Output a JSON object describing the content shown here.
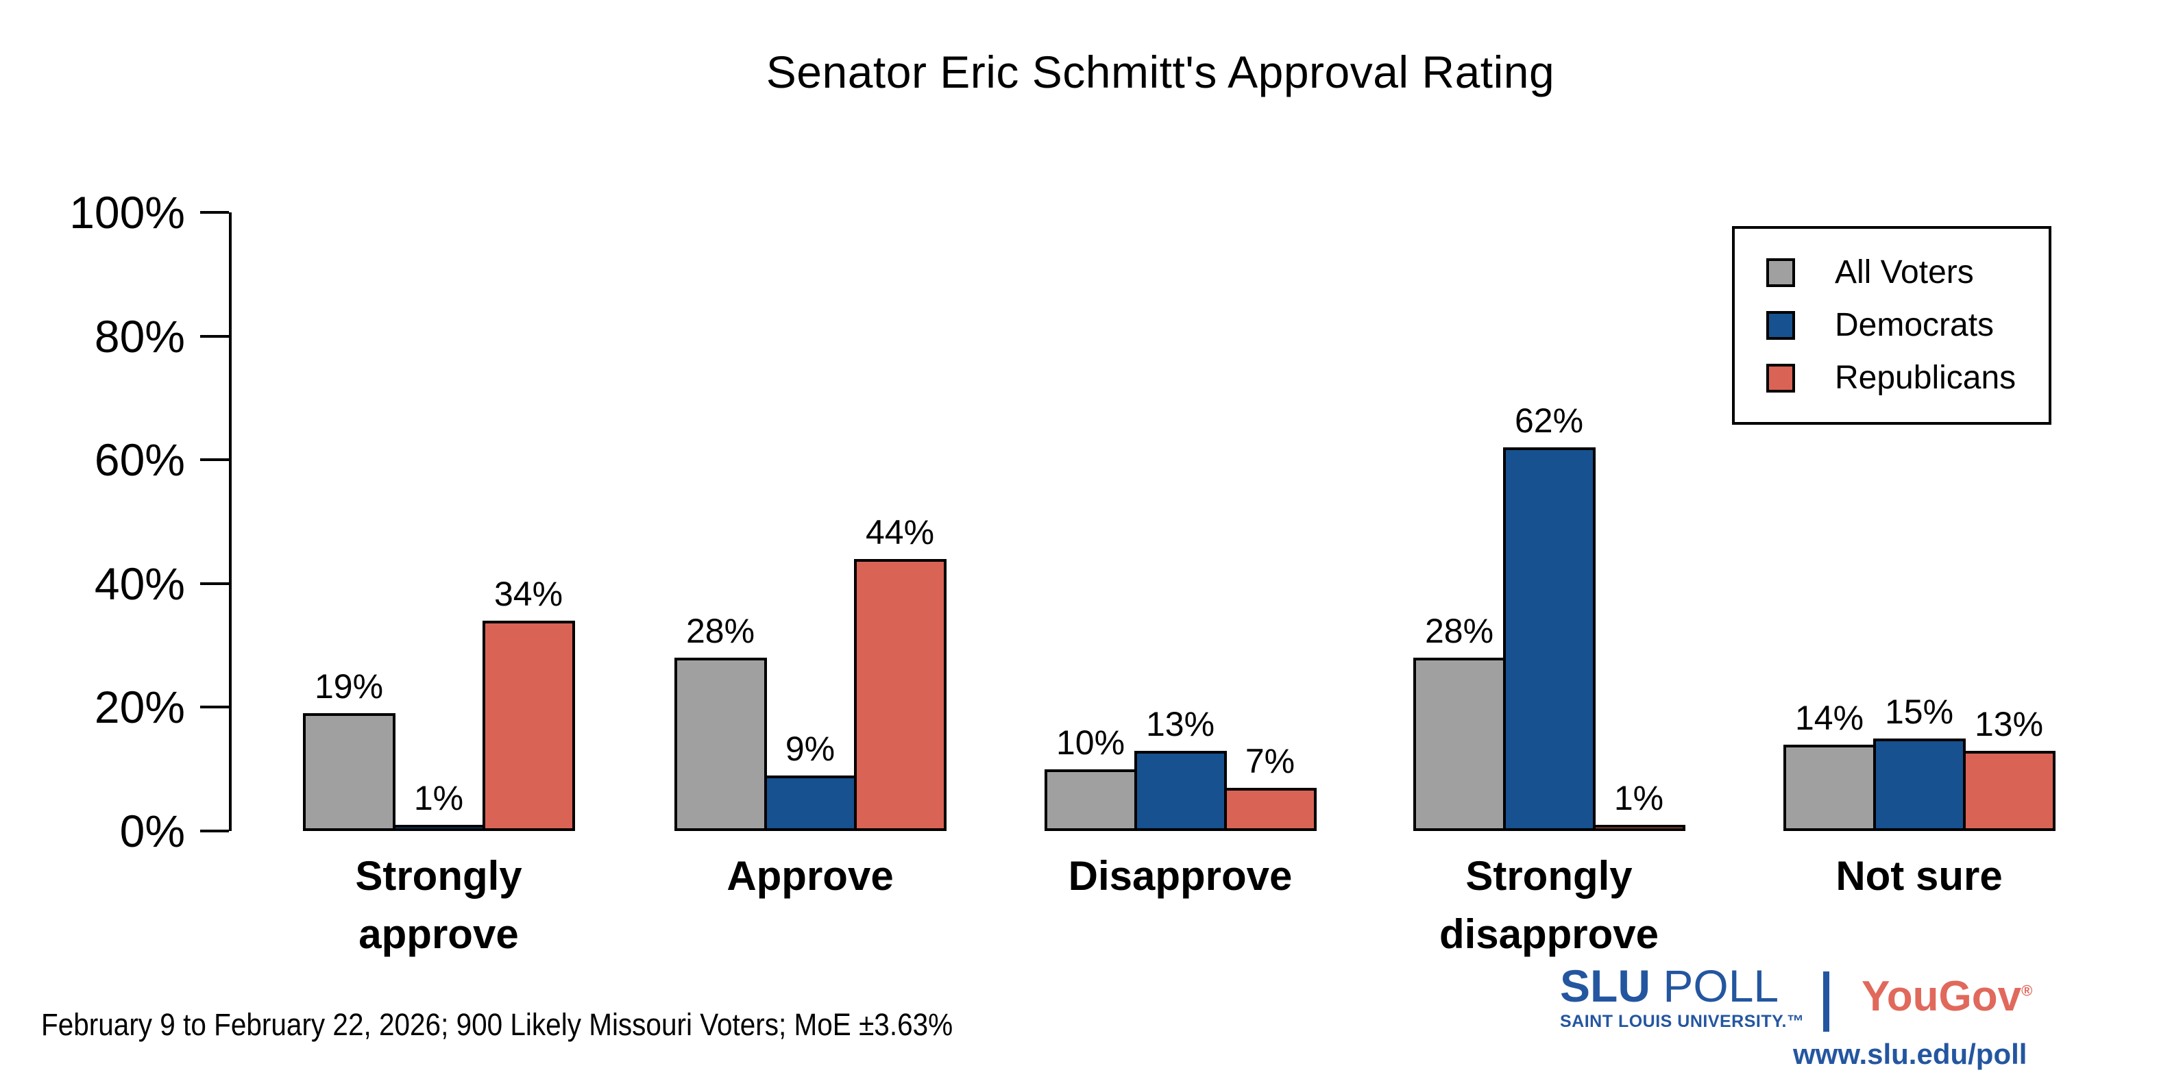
{
  "header": {
    "title": "Senator Eric Schmitt's Approval Rating"
  },
  "footer": {
    "text": "February 9 to February 22, 2026; 900 Likely Missouri Voters; MoE ±3.63%"
  },
  "legend": {
    "items": [
      {
        "label": "All Voters",
        "color": "#a0a0a0"
      },
      {
        "label": "Democrats",
        "color": "#17518f"
      },
      {
        "label": "Republicans",
        "color": "#d96355"
      }
    ]
  },
  "branding": {
    "slu": "SLU ",
    "poll": "POLL",
    "subtitle": "SAINT LOUIS UNIVERSITY.™",
    "yougov": "YouGov",
    "registered": "®",
    "url": "www.slu.edu/poll",
    "slu_blue": "#2456a0",
    "yougov_red": "#e0695c"
  },
  "chart_data": {
    "type": "bar",
    "title": "Senator Eric Schmitt's Approval Rating",
    "categories": [
      "Strongly approve",
      "Approve",
      "Disapprove",
      "Strongly disapprove",
      "Not sure"
    ],
    "categories_lines": [
      [
        "Strongly",
        "approve"
      ],
      [
        "Approve"
      ],
      [
        "Disapprove"
      ],
      [
        "Strongly",
        "disapprove"
      ],
      [
        "Not sure"
      ]
    ],
    "series": [
      {
        "name": "All Voters",
        "color": "#a0a0a0",
        "values": [
          19,
          28,
          10,
          28,
          14
        ]
      },
      {
        "name": "Democrats",
        "color": "#17518f",
        "values": [
          1,
          9,
          13,
          62,
          15
        ]
      },
      {
        "name": "Republicans",
        "color": "#d96355",
        "values": [
          34,
          44,
          7,
          1,
          13
        ]
      }
    ],
    "value_label_suffix": "%",
    "xlabel": "",
    "ylabel": "",
    "ylim": [
      0,
      100
    ],
    "yticks": [
      "0%",
      "20%",
      "40%",
      "60%",
      "80%",
      "100%"
    ],
    "grid": false,
    "bar_outline_color": "#000000",
    "legend_position": "top-right",
    "source_note": "February 9 to February 22, 2026; 900 Likely Missouri Voters; MoE ±3.63%"
  }
}
